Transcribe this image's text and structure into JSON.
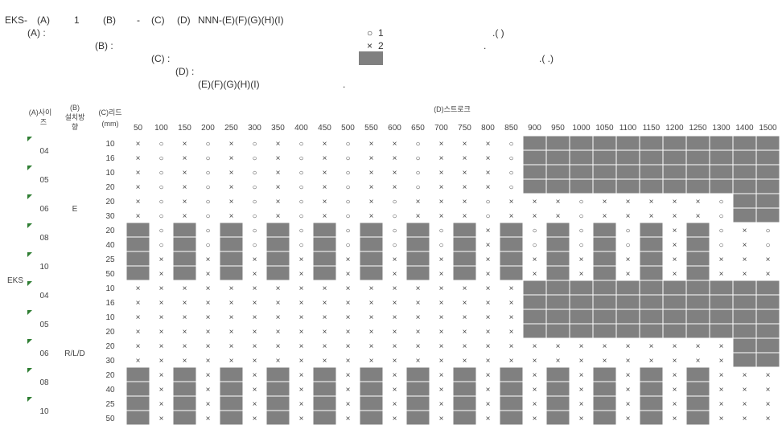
{
  "formula": {
    "items": [
      "EKS-",
      "(A)",
      "1",
      "(B)",
      "-",
      "(C)",
      "(D)",
      "NNN-(E)(F)(G)(H)(I)"
    ]
  },
  "legend": {
    "a_label": "(A) :",
    "b_label": "(B) :",
    "c_label": "(C) :",
    "d_label": "(D) :",
    "e_label": "(E)(F)(G)(H)(I)",
    "e_period": ".",
    "circle_symbol": "○",
    "circle_num": "1",
    "circle_paren": ".(        )",
    "cross_symbol": "×",
    "cross_num": "2",
    "cross_period": ".",
    "gray_paren": ".(                                            .)"
  },
  "colors": {
    "na_fill": "#808080",
    "grid_line": "#ffffff",
    "text": "#444444"
  },
  "table": {
    "type": "table",
    "header": {
      "a": [
        "(A)사이",
        "즈"
      ],
      "b": [
        "(B)",
        "설치방",
        "향"
      ],
      "c": [
        "(C)리드",
        "(mm)"
      ],
      "d": "(D)스트로크"
    },
    "series_label": "EKS",
    "strokes": [
      "50",
      "100",
      "150",
      "200",
      "250",
      "300",
      "350",
      "400",
      "450",
      "500",
      "550",
      "600",
      "650",
      "700",
      "750",
      "800",
      "850",
      "900",
      "950",
      "1000",
      "1050",
      "1100",
      "1150",
      "1200",
      "1250",
      "1300",
      "1400",
      "1500"
    ],
    "rows": [
      {
        "size": "04",
        "dir": "",
        "lead": "10",
        "cells": "XOXOXOXOXOXXOXXXO-----------"
      },
      {
        "size": "",
        "dir": "",
        "lead": "16",
        "cells": "XOXOXOXOXOXXOXXXO-----------"
      },
      {
        "size": "05",
        "dir": "",
        "lead": "10",
        "cells": "XOXOXOXOXOXXOXXXO-----------"
      },
      {
        "size": "",
        "dir": "",
        "lead": "20",
        "cells": "XOXOXOXOXOXXOXXXO-----------"
      },
      {
        "size": "06",
        "dir": "E",
        "lead": "20",
        "cells": "XOXOXOXOXOXOXXXOXXXOXXXXXO--"
      },
      {
        "size": "",
        "dir": "",
        "lead": "30",
        "cells": "XOXOXOXOXOXOXXXOXXXOXXXXXO--"
      },
      {
        "size": "08",
        "dir": "",
        "lead": "20",
        "cells": "-O-O-O-O-O-O-O-X-O-O-O-X-OXO"
      },
      {
        "size": "",
        "dir": "",
        "lead": "40",
        "cells": "-O-O-O-O-O-O-O-X-O-O-O-X-OXO"
      },
      {
        "size": "10",
        "dir": "",
        "lead": "25",
        "cells": "-X-X-X-X-X-X-X-X-X-X-X-X-XXX"
      },
      {
        "size": "",
        "dir": "",
        "lead": "50",
        "cells": "-X-X-X-X-X-X-X-X-X-X-X-X-XXX"
      },
      {
        "size": "04",
        "dir": "",
        "lead": "10",
        "cells": "XXXXXXXXXXXXXXXXX-----------"
      },
      {
        "size": "",
        "dir": "",
        "lead": "16",
        "cells": "XXXXXXXXXXXXXXXXX-----------"
      },
      {
        "size": "05",
        "dir": "",
        "lead": "10",
        "cells": "XXXXXXXXXXXXXXXXX-----------"
      },
      {
        "size": "",
        "dir": "",
        "lead": "20",
        "cells": "XXXXXXXXXXXXXXXXX-----------"
      },
      {
        "size": "06",
        "dir": "R/L/D",
        "lead": "20",
        "cells": "XXXXXXXXXXXXXXXXXXXXXXXXXX--"
      },
      {
        "size": "",
        "dir": "",
        "lead": "30",
        "cells": "XXXXXXXXXXXXXXXXXXXXXXXXXX--"
      },
      {
        "size": "08",
        "dir": "",
        "lead": "20",
        "cells": "-X-X-X-X-X-X-X-X-X-X-X-X-XXX"
      },
      {
        "size": "",
        "dir": "",
        "lead": "40",
        "cells": "-X-X-X-X-X-X-X-X-X-X-X-X-XXX"
      },
      {
        "size": "10",
        "dir": "",
        "lead": "25",
        "cells": "-X-X-X-X-X-X-X-X-X-X-X-X-XXX"
      },
      {
        "size": "",
        "dir": "",
        "lead": "50",
        "cells": "-X-X-X-X-X-X-X-X-X-X-X-X-XXX"
      }
    ],
    "symbols": {
      "O": "○",
      "X": "×"
    }
  }
}
